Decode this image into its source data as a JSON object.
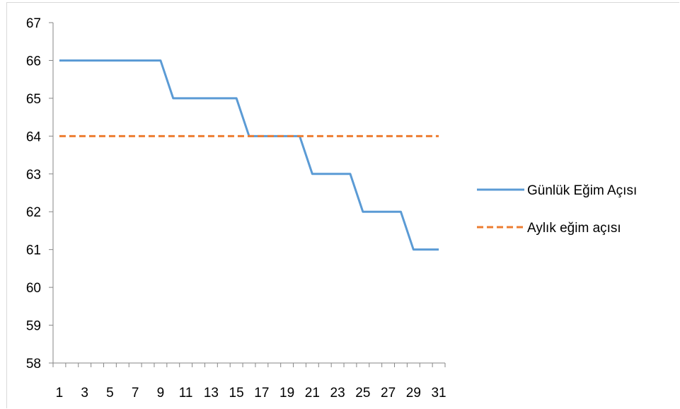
{
  "chart_data": {
    "type": "line",
    "x": [
      1,
      2,
      3,
      4,
      5,
      6,
      7,
      8,
      9,
      10,
      11,
      12,
      13,
      14,
      15,
      16,
      17,
      18,
      19,
      20,
      21,
      22,
      23,
      24,
      25,
      26,
      27,
      28,
      29,
      30,
      31
    ],
    "x_tick_labels": [
      "1",
      "3",
      "5",
      "7",
      "9",
      "11",
      "13",
      "15",
      "17",
      "19",
      "21",
      "23",
      "25",
      "27",
      "29",
      "31"
    ],
    "y_tick_labels": [
      "58",
      "59",
      "60",
      "61",
      "62",
      "63",
      "64",
      "65",
      "66",
      "67"
    ],
    "ylim": [
      58,
      67
    ],
    "xlim": [
      1,
      31
    ],
    "grid": false,
    "legend_position": "right",
    "series": [
      {
        "name": "Günlük Eğim Açısı",
        "color": "#5b9bd5",
        "dash": "solid",
        "values": [
          66,
          66,
          66,
          66,
          66,
          66,
          66,
          66,
          66,
          65,
          65,
          65,
          65,
          65,
          65,
          64,
          64,
          64,
          64,
          64,
          63,
          63,
          63,
          63,
          62,
          62,
          62,
          62,
          61,
          61,
          61
        ]
      },
      {
        "name": "Aylık eğim açısı",
        "color": "#ed7d31",
        "dash": "dashed",
        "values": [
          64,
          64,
          64,
          64,
          64,
          64,
          64,
          64,
          64,
          64,
          64,
          64,
          64,
          64,
          64,
          64,
          64,
          64,
          64,
          64,
          64,
          64,
          64,
          64,
          64,
          64,
          64,
          64,
          64,
          64,
          64
        ]
      }
    ]
  }
}
